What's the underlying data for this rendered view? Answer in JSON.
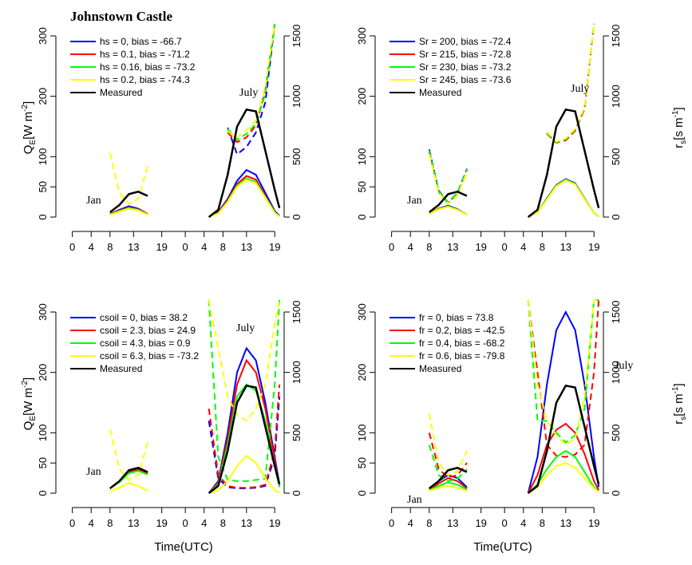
{
  "chart_data": [
    {
      "type": "line",
      "title": "Johnstown Castle",
      "ylabel": {
        "text": "Q",
        "sub": "E",
        "rest": "[W m",
        "sup": "-2",
        "end": "]"
      },
      "annotations": [
        "Jan",
        "July"
      ],
      "x": [
        8,
        10,
        12,
        14,
        16,
        29,
        31,
        33,
        35,
        37,
        39,
        41,
        43,
        44
      ],
      "xlim": [
        -3.5,
        45
      ],
      "xticks": [
        0,
        4,
        8,
        13,
        19,
        {
          "value": 24,
          "label": "0"
        },
        {
          "value": 28,
          "label": "4"
        },
        {
          "value": 32,
          "label": "8"
        },
        {
          "value": 37,
          "label": "13"
        },
        {
          "value": 43,
          "label": "19"
        }
      ],
      "ylim": [
        0,
        300
      ],
      "yticks": [
        0,
        50,
        100,
        200,
        300
      ],
      "y2lim": [
        0,
        1500
      ],
      "y2ticks": [
        0,
        500,
        1000,
        1500
      ],
      "series": [
        {
          "name": "hs = 0,  bias = -66.7",
          "color": "#0000ff",
          "values": [
            5,
            12,
            18,
            14,
            5,
            0,
            8,
            30,
            60,
            78,
            70,
            40,
            10,
            2
          ],
          "y2_values": [
            null,
            null,
            null,
            null,
            null,
            null,
            null,
            740,
            520,
            580,
            700,
            950,
            1600,
            null
          ]
        },
        {
          "name": "hs = 0.1,  bias = -71.2",
          "color": "#ff0000",
          "values": [
            5,
            11,
            16,
            13,
            5,
            0,
            7,
            28,
            55,
            68,
            62,
            35,
            8,
            1
          ],
          "y2_values": [
            null,
            null,
            null,
            null,
            null,
            null,
            null,
            700,
            620,
            660,
            760,
            1050,
            1600,
            null
          ]
        },
        {
          "name": "hs = 0.16,  bias = -73.2",
          "color": "#00ff00",
          "values": [
            4,
            10,
            15,
            12,
            4,
            0,
            6,
            26,
            52,
            64,
            58,
            33,
            8,
            1
          ],
          "y2_values": [
            null,
            null,
            null,
            null,
            null,
            null,
            null,
            730,
            640,
            690,
            770,
            1020,
            1600,
            null
          ]
        },
        {
          "name": "hs = 0.2, bias = -74.3",
          "color": "#ffff00",
          "values": [
            4,
            9,
            14,
            11,
            4,
            0,
            6,
            25,
            50,
            62,
            56,
            32,
            7,
            1
          ],
          "y2_values": [
            530,
            200,
            110,
            150,
            420,
            null,
            null,
            710,
            660,
            720,
            800,
            1080,
            1600,
            null
          ]
        },
        {
          "name": "Measured",
          "color": "#000000",
          "values": [
            8,
            20,
            38,
            42,
            35,
            0,
            12,
            70,
            150,
            178,
            175,
            110,
            45,
            15
          ]
        }
      ]
    },
    {
      "type": "line",
      "y2label": {
        "text": "r",
        "sub": "s",
        "rest": "[s m",
        "sup": "-1",
        "end": "]"
      },
      "annotations": [
        "Jan",
        "July"
      ],
      "x": [
        8,
        10,
        12,
        14,
        16,
        29,
        31,
        33,
        35,
        37,
        39,
        41,
        43,
        44
      ],
      "xlim": [
        -3.5,
        45
      ],
      "xticks": [
        0,
        4,
        8,
        13,
        19,
        {
          "value": 24,
          "label": "0"
        },
        {
          "value": 28,
          "label": "4"
        },
        {
          "value": 32,
          "label": "8"
        },
        {
          "value": 37,
          "label": "13"
        },
        {
          "value": 43,
          "label": "19"
        }
      ],
      "ylim": [
        0,
        300
      ],
      "yticks": [
        0,
        50,
        100,
        200,
        300
      ],
      "y2lim": [
        0,
        1500
      ],
      "y2ticks": [
        0,
        500,
        1000,
        1500
      ],
      "series": [
        {
          "name": "Sr = 200,  bias = -72.4",
          "color": "#0000ff",
          "values": [
            5,
            14,
            19,
            13,
            4,
            0,
            8,
            31,
            53,
            63,
            56,
            31,
            7,
            1
          ],
          "y2_values": [
            560,
            220,
            120,
            200,
            400,
            null,
            null,
            700,
            620,
            640,
            720,
            900,
            1600,
            null
          ]
        },
        {
          "name": "Sr = 215,  bias = -72.8",
          "color": "#ff0000",
          "values": [
            5,
            14,
            18,
            12,
            4,
            0,
            8,
            30,
            52,
            62,
            55,
            30,
            7,
            1
          ],
          "y2_values": [
            540,
            210,
            115,
            190,
            390,
            null,
            null,
            690,
            615,
            635,
            715,
            895,
            1600,
            null
          ]
        },
        {
          "name": "Sr = 230,  bias = -73.2",
          "color": "#00ff00",
          "values": [
            5,
            13,
            18,
            12,
            4,
            0,
            8,
            30,
            52,
            62,
            55,
            30,
            7,
            1
          ],
          "y2_values": [
            550,
            215,
            118,
            195,
            395,
            null,
            null,
            695,
            618,
            645,
            725,
            905,
            1600,
            null
          ]
        },
        {
          "name": "Sr = 245,  bias = -73.6",
          "color": "#ffff00",
          "values": [
            5,
            13,
            17,
            12,
            4,
            0,
            8,
            29,
            51,
            61,
            54,
            30,
            7,
            1
          ],
          "y2_values": [
            520,
            200,
            110,
            180,
            370,
            null,
            null,
            705,
            625,
            650,
            730,
            910,
            1600,
            null
          ]
        },
        {
          "name": "Measured",
          "color": "#000000",
          "values": [
            8,
            20,
            38,
            42,
            35,
            0,
            12,
            70,
            150,
            178,
            175,
            110,
            45,
            15
          ]
        }
      ]
    },
    {
      "type": "line",
      "ylabel": {
        "text": "Q",
        "sub": "E",
        "rest": "[W m",
        "sup": "-2",
        "end": "]"
      },
      "xlabel": "Time(UTC)",
      "annotations": [
        "Jan",
        "July"
      ],
      "x": [
        8,
        10,
        12,
        14,
        16,
        29,
        31,
        33,
        35,
        37,
        39,
        41,
        43,
        44
      ],
      "xlim": [
        -3.5,
        45
      ],
      "xticks": [
        0,
        4,
        8,
        13,
        19,
        {
          "value": 24,
          "label": "0"
        },
        {
          "value": 28,
          "label": "4"
        },
        {
          "value": 32,
          "label": "8"
        },
        {
          "value": 37,
          "label": "13"
        },
        {
          "value": 43,
          "label": "19"
        }
      ],
      "ylim": [
        0,
        300
      ],
      "yticks": [
        0,
        50,
        100,
        200,
        300
      ],
      "y2lim": [
        0,
        1500
      ],
      "y2ticks": [
        0,
        500,
        1000,
        1500
      ],
      "series": [
        {
          "name": "csoil = 0,  bias = 38.2",
          "color": "#0000ff",
          "values": [
            8,
            20,
            37,
            41,
            34,
            0,
            20,
            100,
            200,
            240,
            220,
            150,
            60,
            15
          ],
          "y2_values": [
            null,
            null,
            null,
            null,
            null,
            600,
            120,
            50,
            40,
            40,
            45,
            60,
            300,
            800
          ]
        },
        {
          "name": "csoil = 2.3,  bias = 24.9",
          "color": "#ff0000",
          "values": [
            8,
            19,
            35,
            39,
            33,
            0,
            18,
            90,
            180,
            220,
            200,
            140,
            55,
            12
          ],
          "y2_values": [
            null,
            null,
            null,
            null,
            null,
            700,
            150,
            60,
            45,
            45,
            50,
            70,
            350,
            900
          ]
        },
        {
          "name": "csoil = 4.3,  bias = 0.9",
          "color": "#00ff00",
          "values": [
            8,
            18,
            33,
            37,
            31,
            0,
            15,
            80,
            160,
            180,
            170,
            120,
            45,
            10
          ],
          "y2_values": [
            null,
            null,
            null,
            null,
            null,
            1600,
            300,
            110,
            100,
            100,
            110,
            120,
            900,
            1600
          ]
        },
        {
          "name": "csoil = 6.3, bias = -73.2",
          "color": "#ffff00",
          "values": [
            4,
            9,
            17,
            12,
            4,
            0,
            5,
            20,
            45,
            62,
            50,
            25,
            5,
            0
          ],
          "y2_values": [
            530,
            200,
            110,
            150,
            420,
            1600,
            1200,
            800,
            650,
            600,
            700,
            900,
            1400,
            1600
          ]
        },
        {
          "name": "Measured",
          "color": "#000000",
          "values": [
            8,
            20,
            38,
            42,
            35,
            0,
            12,
            70,
            150,
            178,
            175,
            110,
            45,
            15
          ]
        }
      ]
    },
    {
      "type": "line",
      "y2label": {
        "text": "r",
        "sub": "s",
        "rest": "[s m",
        "sup": "-1",
        "end": "]"
      },
      "xlabel": "Time(UTC)",
      "annotations": [
        "Jan",
        "July"
      ],
      "x": [
        8,
        10,
        12,
        14,
        16,
        29,
        31,
        33,
        35,
        37,
        39,
        41,
        43,
        44
      ],
      "xlim": [
        -3.5,
        45
      ],
      "xticks": [
        0,
        4,
        8,
        13,
        19,
        {
          "value": 24,
          "label": "0"
        },
        {
          "value": 28,
          "label": "4"
        },
        {
          "value": 32,
          "label": "8"
        },
        {
          "value": 37,
          "label": "13"
        },
        {
          "value": 43,
          "label": "19"
        }
      ],
      "ylim": [
        0,
        300
      ],
      "yticks": [
        0,
        50,
        100,
        200,
        300
      ],
      "y2lim": [
        0,
        1500
      ],
      "y2ticks": [
        0,
        500,
        1000,
        1500
      ],
      "series": [
        {
          "name": "fr = 0,  bias = 73.8",
          "color": "#0000ff",
          "values": [
            8,
            20,
            30,
            25,
            10,
            0,
            60,
            180,
            270,
            300,
            270,
            180,
            60,
            10
          ]
        },
        {
          "name": "fr = 0.2,  bias = -42.5",
          "color": "#ff0000",
          "values": [
            6,
            16,
            25,
            20,
            8,
            0,
            30,
            80,
            105,
            115,
            100,
            65,
            20,
            5
          ],
          "y2_values": [
            500,
            200,
            130,
            150,
            250,
            1600,
            1000,
            400,
            310,
            300,
            320,
            400,
            1000,
            1600
          ]
        },
        {
          "name": "fr = 0.4,  bias = -68.2",
          "color": "#00ff00",
          "values": [
            5,
            12,
            18,
            14,
            6,
            0,
            15,
            40,
            60,
            70,
            60,
            35,
            10,
            3
          ],
          "y2_values": [
            400,
            150,
            100,
            120,
            200,
            1600,
            600,
            600,
            500,
            420,
            480,
            700,
            1600,
            1600
          ]
        },
        {
          "name": "fr = 0.6,  bias = -79.8",
          "color": "#ffff00",
          "values": [
            4,
            9,
            12,
            9,
            4,
            0,
            10,
            30,
            45,
            50,
            42,
            25,
            8,
            2
          ],
          "y2_values": [
            660,
            250,
            150,
            180,
            350,
            1600,
            900,
            600,
            480,
            400,
            450,
            800,
            1600,
            1600
          ]
        },
        {
          "name": "Measured",
          "color": "#000000",
          "values": [
            8,
            20,
            38,
            42,
            35,
            0,
            12,
            70,
            150,
            178,
            175,
            110,
            45,
            15
          ]
        }
      ]
    }
  ]
}
